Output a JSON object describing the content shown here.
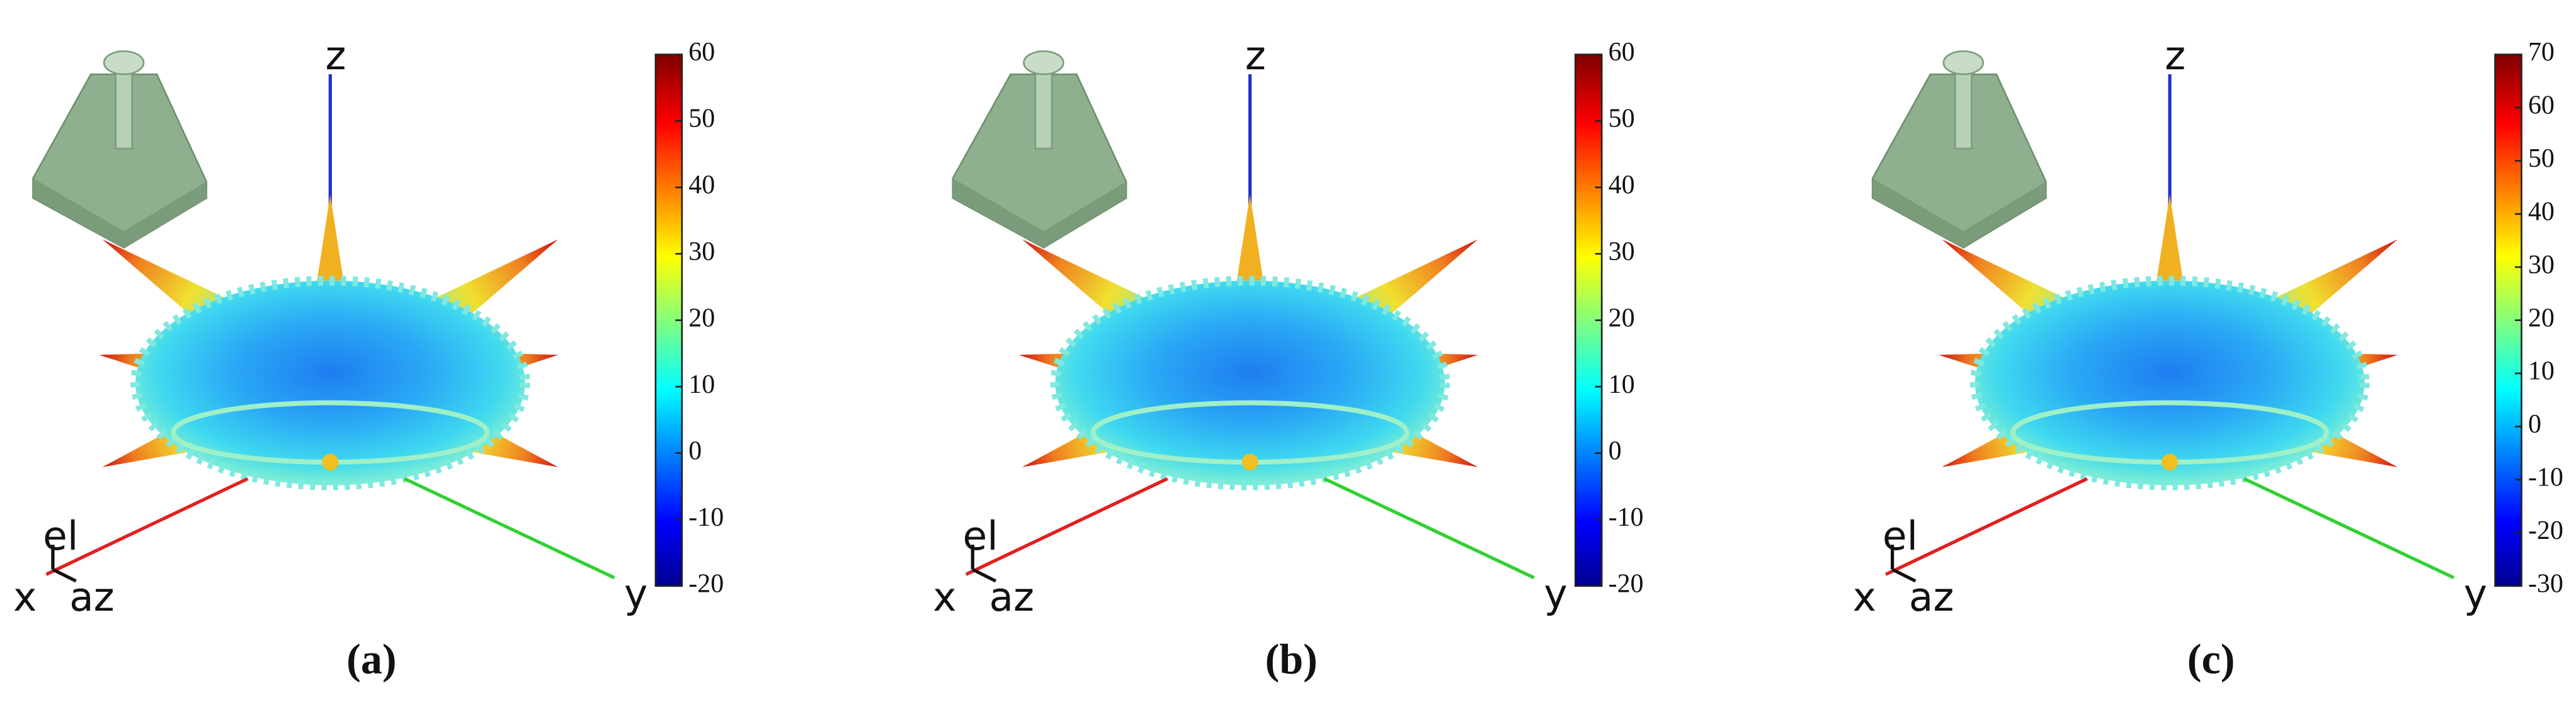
{
  "panels": [
    {
      "caption": "(a)",
      "axis_labels": {
        "x": "x",
        "y": "y",
        "z": "z",
        "el": "el",
        "az": "az"
      },
      "colorbar": {
        "clim": [
          -20,
          60
        ],
        "ticks": [
          60,
          50,
          40,
          30,
          20,
          10,
          0,
          -10,
          -20
        ]
      }
    },
    {
      "caption": "(b)",
      "axis_labels": {
        "x": "x",
        "y": "y",
        "z": "z",
        "el": "el",
        "az": "az"
      },
      "colorbar": {
        "clim": [
          -20,
          60
        ],
        "ticks": [
          60,
          50,
          40,
          30,
          20,
          10,
          0,
          -10,
          -20
        ]
      }
    },
    {
      "caption": "(c)",
      "axis_labels": {
        "x": "x",
        "y": "y",
        "z": "z",
        "el": "el",
        "az": "az"
      },
      "colorbar": {
        "clim": [
          -30,
          70
        ],
        "ticks": [
          70,
          60,
          50,
          40,
          30,
          20,
          10,
          0,
          -10,
          -20,
          -30
        ]
      }
    }
  ]
}
